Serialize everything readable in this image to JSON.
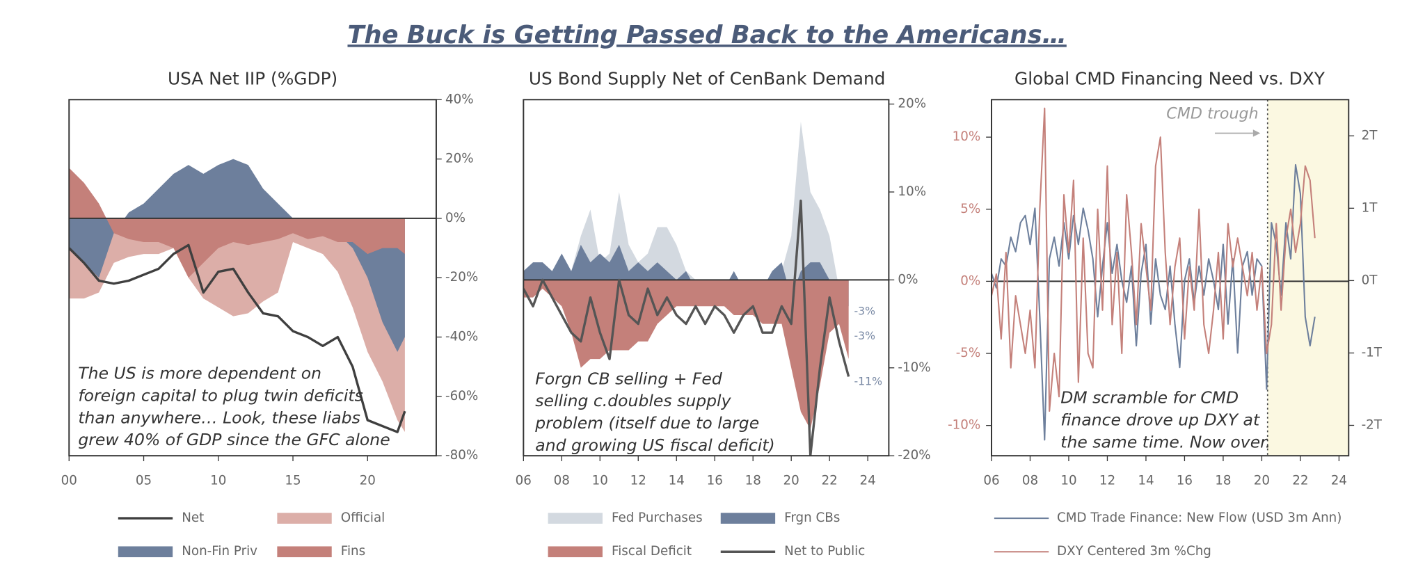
{
  "title": "The Buck is Getting Passed Back to the Americans…",
  "chart_data": [
    {
      "type": "area",
      "title": "USA Net IIP (%GDP)",
      "x": [
        2000,
        2001,
        2002,
        2003,
        2004,
        2005,
        2006,
        2007,
        2008,
        2009,
        2010,
        2011,
        2012,
        2013,
        2014,
        2015,
        2016,
        2017,
        2018,
        2019,
        2020,
        2021,
        2022,
        2022.5
      ],
      "series": [
        {
          "name": "Net",
          "style": "line",
          "color": "#3f3f3f",
          "values": [
            -10,
            -15,
            -21,
            -22,
            -21,
            -19,
            -17,
            -12,
            -9,
            -25,
            -18,
            -17,
            -25,
            -32,
            -33,
            -38,
            -40,
            -43,
            -40,
            -50,
            -68,
            -70,
            -72,
            -65
          ]
        },
        {
          "name": "Official",
          "style": "area",
          "color": "#dcaea8",
          "values": [
            -27,
            -27,
            -25,
            -15,
            -13,
            -12,
            -12,
            -10,
            -20,
            -27,
            -30,
            -33,
            -32,
            -28,
            -25,
            -8,
            -10,
            -12,
            -18,
            -30,
            -45,
            -55,
            -68,
            -72
          ]
        },
        {
          "name": "Non-Fin Priv",
          "style": "area",
          "color": "#6d7f9c",
          "values": [
            -10,
            -15,
            -20,
            -5,
            2,
            5,
            10,
            15,
            18,
            15,
            18,
            20,
            18,
            10,
            5,
            0,
            -3,
            -5,
            -5,
            -10,
            -20,
            -35,
            -45,
            -40
          ]
        },
        {
          "name": "Fins",
          "style": "area",
          "color": "#c4807a",
          "values": [
            17,
            12,
            5,
            -5,
            -7,
            -8,
            -8,
            -10,
            -20,
            -15,
            -10,
            -8,
            -9,
            -8,
            -7,
            -5,
            -7,
            -6,
            -8,
            -8,
            -12,
            -10,
            -10,
            -12
          ]
        }
      ],
      "xlim": [
        2000,
        2024.6
      ],
      "xticks": [
        {
          "value": 2000,
          "label": "00"
        },
        {
          "value": 2005,
          "label": "05"
        },
        {
          "value": 2010,
          "label": "10"
        },
        {
          "value": 2015,
          "label": "15"
        },
        {
          "value": 2020,
          "label": "20"
        }
      ],
      "ylim": [
        -80,
        40
      ],
      "y_axis_position": "right",
      "yticks": [
        {
          "value": 40,
          "label": "40%"
        },
        {
          "value": 20,
          "label": "20%"
        },
        {
          "value": 0,
          "label": "0%"
        },
        {
          "value": -20,
          "label": "-20%"
        },
        {
          "value": -40,
          "label": "-40%"
        },
        {
          "value": -60,
          "label": "-60%"
        },
        {
          "value": -80,
          "label": "-80%"
        }
      ],
      "legend_columns": 2,
      "annotation": [
        "The US is more dependent on",
        "foreign capital to plug twin deficits",
        "than anywhere… Look, these liabs",
        "grew 40% of GDP since the GFC alone"
      ]
    },
    {
      "type": "area",
      "title": "US Bond Supply Net of CenBank Demand",
      "x": [
        2006,
        2006.5,
        2007,
        2007.5,
        2008,
        2008.5,
        2009,
        2009.5,
        2010,
        2010.5,
        2011,
        2011.5,
        2012,
        2012.5,
        2013,
        2013.5,
        2014,
        2014.5,
        2015,
        2015.5,
        2016,
        2016.5,
        2017,
        2017.5,
        2018,
        2018.5,
        2019,
        2019.5,
        2020,
        2020.5,
        2021,
        2021.5,
        2022,
        2022.5,
        2023
      ],
      "series": [
        {
          "name": "Fed Purchases",
          "style": "area",
          "color": "#d3d9e0",
          "end_label": "-3%",
          "values": [
            0,
            0,
            0,
            0,
            0,
            1,
            5,
            8,
            2,
            3,
            10,
            4,
            2,
            3,
            6,
            6,
            4,
            1,
            0,
            0,
            0,
            0,
            0,
            0,
            -1,
            -1,
            0,
            1,
            5,
            18,
            10,
            8,
            5,
            -1,
            -3
          ]
        },
        {
          "name": "Frgn CBs",
          "style": "area",
          "color": "#6d7f9c",
          "end_label": "-3%",
          "values": [
            1,
            2,
            2,
            1,
            3,
            1,
            4,
            2,
            3,
            2,
            4,
            1,
            2,
            1,
            2,
            1,
            0,
            1,
            -1,
            -2,
            -2,
            -1,
            1,
            -1,
            0,
            -1,
            1,
            2,
            -2,
            1,
            2,
            2,
            0,
            -2,
            -3
          ]
        },
        {
          "name": "Fiscal Deficit",
          "style": "area",
          "color": "#c4807a",
          "values": [
            -2,
            -2,
            -1,
            -2,
            -3,
            -6,
            -10,
            -9,
            -9,
            -8,
            -8,
            -8,
            -7,
            -7,
            -5,
            -4,
            -3,
            -3,
            -3,
            -3,
            -3,
            -3,
            -4,
            -4,
            -4,
            -5,
            -5,
            -5,
            -10,
            -15,
            -17,
            -12,
            -6,
            -5,
            -9
          ]
        },
        {
          "name": "Net to Public",
          "style": "line",
          "color": "#555555",
          "end_label": "-11%",
          "values": [
            -1,
            -3,
            0,
            -2,
            -4,
            -6,
            -7,
            -2,
            -6,
            -9,
            0,
            -4,
            -5,
            -1,
            -4,
            -2,
            -4,
            -5,
            -3,
            -5,
            -3,
            -4,
            -6,
            -4,
            -3,
            -6,
            -6,
            -3,
            -5,
            9,
            -20,
            -10,
            -2,
            -7,
            -11
          ]
        }
      ],
      "xlim": [
        2006,
        2025.1
      ],
      "xticks": [
        {
          "value": 2006,
          "label": "06"
        },
        {
          "value": 2008,
          "label": "08"
        },
        {
          "value": 2010,
          "label": "10"
        },
        {
          "value": 2012,
          "label": "12"
        },
        {
          "value": 2014,
          "label": "14"
        },
        {
          "value": 2016,
          "label": "16"
        },
        {
          "value": 2018,
          "label": "18"
        },
        {
          "value": 2020,
          "label": "20"
        },
        {
          "value": 2022,
          "label": "22"
        },
        {
          "value": 2024,
          "label": "24"
        }
      ],
      "ylim": [
        -20,
        20.5
      ],
      "y_axis_position": "right",
      "yticks": [
        {
          "value": 20,
          "label": "20%"
        },
        {
          "value": 10,
          "label": "10%"
        },
        {
          "value": 0,
          "label": "0%"
        },
        {
          "value": -10,
          "label": "-10%"
        },
        {
          "value": -20,
          "label": "-20%"
        }
      ],
      "legend_columns": 2,
      "annotation": [
        "Forgn  CB selling + Fed",
        "selling c.doubles supply",
        "problem (itself due to large",
        "and growing US fiscal deficit)"
      ]
    },
    {
      "type": "line",
      "title": "Global CMD Financing Need vs. DXY",
      "x": [
        2006,
        2006.25,
        2006.5,
        2006.75,
        2007,
        2007.25,
        2007.5,
        2007.75,
        2008,
        2008.25,
        2008.5,
        2008.75,
        2009,
        2009.25,
        2009.5,
        2009.75,
        2010,
        2010.25,
        2010.5,
        2010.75,
        2011,
        2011.25,
        2011.5,
        2011.75,
        2012,
        2012.25,
        2012.5,
        2012.75,
        2013,
        2013.25,
        2013.5,
        2013.75,
        2014,
        2014.25,
        2014.5,
        2014.75,
        2015,
        2015.25,
        2015.5,
        2015.75,
        2016,
        2016.25,
        2016.5,
        2016.75,
        2017,
        2017.25,
        2017.5,
        2017.75,
        2018,
        2018.25,
        2018.5,
        2018.75,
        2019,
        2019.25,
        2019.5,
        2019.75,
        2020,
        2020.25,
        2020.5,
        2020.75,
        2021,
        2021.25,
        2021.5,
        2021.75,
        2022,
        2022.25,
        2022.5,
        2022.75
      ],
      "series": [
        {
          "name": "CMD Trade Finance: New Flow (USD 3m Ann)",
          "style": "line",
          "color": "#6d7f9c",
          "axis": "y2",
          "values": [
            0.1,
            -0.1,
            0.3,
            0.2,
            0.6,
            0.4,
            0.8,
            0.9,
            0.5,
            1.0,
            -0.5,
            -2.2,
            0.3,
            0.6,
            0.2,
            0.8,
            0.3,
            0.9,
            0.5,
            1.0,
            0.7,
            0.3,
            -0.5,
            0.2,
            0.8,
            0.1,
            0.5,
            0.0,
            -0.3,
            0.2,
            -0.9,
            0.1,
            0.5,
            -0.6,
            0.3,
            -0.2,
            -0.4,
            0.2,
            -0.6,
            -1.2,
            0.0,
            0.3,
            -0.3,
            0.2,
            -0.2,
            0.3,
            0.0,
            -0.4,
            0.5,
            -0.6,
            0.3,
            -1.0,
            0.2,
            0.4,
            -0.2,
            0.3,
            0.2,
            -1.5,
            0.8,
            0.5,
            -0.2,
            0.8,
            0.3,
            1.6,
            1.2,
            -0.5,
            -0.9,
            -0.5
          ]
        },
        {
          "name": "DXY Centered 3m %Chg",
          "style": "line",
          "color": "#c4807a",
          "values": [
            -1,
            0.5,
            -4,
            2,
            -6,
            -1,
            -3,
            -5,
            -2,
            -6,
            5,
            12,
            -9,
            -5,
            -8,
            6,
            2,
            7,
            -7,
            3,
            -5,
            -6,
            5,
            -2,
            8,
            -3,
            2,
            -5,
            6,
            2,
            -3,
            4,
            1,
            -2,
            8,
            10,
            2,
            -3,
            1,
            3,
            -4,
            1,
            -2,
            5,
            -3,
            -5,
            -2,
            2,
            -4,
            4,
            1,
            3,
            1,
            -1,
            2,
            -2,
            1,
            -5,
            -3,
            4,
            -2,
            3,
            5,
            2,
            4,
            8,
            7,
            3
          ]
        }
      ],
      "xlim": [
        2006,
        2024.5
      ],
      "xticks": [
        {
          "value": 2006,
          "label": "06"
        },
        {
          "value": 2008,
          "label": "08"
        },
        {
          "value": 2010,
          "label": "10"
        },
        {
          "value": 2012,
          "label": "12"
        },
        {
          "value": 2014,
          "label": "14"
        },
        {
          "value": 2016,
          "label": "16"
        },
        {
          "value": 2018,
          "label": "18"
        },
        {
          "value": 2020,
          "label": "20"
        },
        {
          "value": 2022,
          "label": "22"
        },
        {
          "value": 2024,
          "label": "24"
        }
      ],
      "ylim": [
        -12.1,
        12.6
      ],
      "y_axis_position": "left",
      "ytick_color": "#c4807a",
      "yticks": [
        {
          "value": 10,
          "label": "10%"
        },
        {
          "value": 5,
          "label": "5%"
        },
        {
          "value": 0,
          "label": "0%"
        },
        {
          "value": -5,
          "label": "-5%"
        },
        {
          "value": -10,
          "label": "-10%"
        }
      ],
      "y2lim": [
        -2.42,
        2.5
      ],
      "y2ticks": [
        {
          "value": 2,
          "label": "2T"
        },
        {
          "value": 1,
          "label": "1T"
        },
        {
          "value": 0,
          "label": "0T"
        },
        {
          "value": -1,
          "label": "-1T"
        },
        {
          "value": -2,
          "label": "-2T"
        }
      ],
      "highlight_start": 2020.3,
      "highlight_color": "#fbf8e1",
      "trough_label": "CMD trough",
      "legend_columns": 1,
      "annotation": [
        "DM scramble for CMD",
        "finance drove up DXY at",
        "the same time. Now over."
      ]
    }
  ]
}
